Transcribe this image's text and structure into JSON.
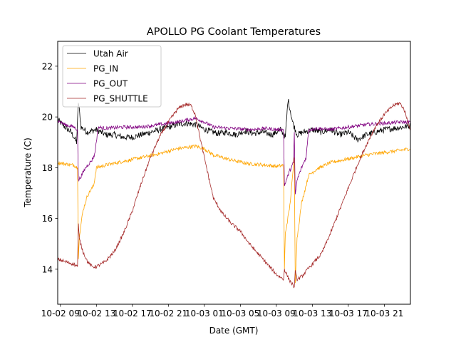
{
  "chart_data": {
    "type": "line",
    "title": "APOLLO PG Coolant Temperatures",
    "xlabel": "Date (GMT)",
    "ylabel": "Temperature (C)",
    "x_unit": "hours since 10-02 00:00 GMT",
    "xlim": [
      8.7,
      47.9
    ],
    "ylim": [
      12.62,
      22.98
    ],
    "xticks": [
      9,
      13,
      17,
      21,
      25,
      29,
      33,
      37,
      41,
      45
    ],
    "xtick_labels": [
      "10-02 09",
      "10-02 13",
      "10-02 17",
      "10-02 21",
      "10-03 01",
      "10-03 05",
      "10-03 09",
      "10-03 13",
      "10-03 17",
      "10-03 21"
    ],
    "yticks": [
      14,
      16,
      18,
      20,
      22
    ],
    "ytick_labels": [
      "14",
      "16",
      "18",
      "20",
      "22"
    ],
    "grid": false,
    "legend": {
      "placement": "top-left"
    },
    "series": [
      {
        "name": "Utah Air",
        "color": "#000000",
        "x": [
          8.7,
          9.5,
          10.2,
          10.8,
          11.0,
          11.3,
          12.0,
          13.0,
          14.0,
          15.0,
          16.0,
          17.0,
          18.0,
          19.0,
          20.0,
          21.0,
          22.0,
          23.0,
          24.0,
          24.8,
          25.5,
          26.5,
          27.5,
          28.5,
          29.5,
          30.5,
          31.5,
          32.5,
          33.5,
          34.0,
          34.3,
          34.8,
          35.3,
          36.0,
          37.0,
          38.0,
          39.0,
          40.0,
          41.0,
          42.0,
          43.0,
          44.0,
          45.0,
          46.0,
          47.0,
          47.9
        ],
        "y": [
          19.9,
          19.6,
          19.4,
          19.0,
          20.6,
          19.6,
          19.4,
          19.5,
          19.3,
          19.3,
          19.2,
          19.2,
          19.3,
          19.4,
          19.5,
          19.6,
          19.7,
          19.75,
          19.7,
          19.55,
          19.45,
          19.35,
          19.4,
          19.3,
          19.45,
          19.35,
          19.4,
          19.3,
          19.5,
          19.2,
          20.7,
          19.8,
          19.3,
          19.4,
          19.5,
          19.4,
          19.5,
          19.3,
          19.4,
          19.1,
          19.3,
          19.4,
          19.5,
          19.55,
          19.6,
          19.65
        ]
      },
      {
        "name": "PG_IN",
        "color": "#ffa500",
        "x": [
          8.7,
          9.5,
          10.5,
          10.9,
          11.0,
          11.1,
          11.5,
          12.0,
          12.7,
          13.0,
          14.0,
          16.0,
          18.0,
          20.0,
          22.0,
          24.0,
          25.0,
          26.0,
          28.0,
          30.0,
          32.0,
          33.0,
          33.8,
          33.9,
          34.0,
          34.5,
          35.0,
          35.1,
          35.3,
          35.8,
          36.3,
          36.6,
          37.5,
          39.0,
          41.0,
          43.0,
          45.0,
          47.0,
          47.9
        ],
        "y": [
          18.2,
          18.15,
          18.1,
          18.0,
          14.4,
          15.3,
          16.3,
          16.9,
          17.3,
          18.0,
          18.1,
          18.25,
          18.4,
          18.55,
          18.75,
          18.85,
          18.75,
          18.5,
          18.3,
          18.15,
          18.1,
          18.05,
          18.1,
          14.0,
          15.4,
          16.5,
          18.4,
          13.5,
          15.2,
          16.6,
          17.3,
          17.7,
          17.95,
          18.2,
          18.35,
          18.5,
          18.6,
          18.7,
          18.75
        ]
      },
      {
        "name": "PG_OUT",
        "color": "#800080",
        "x": [
          8.7,
          9.5,
          10.5,
          10.9,
          11.0,
          11.2,
          11.8,
          12.5,
          12.8,
          13.2,
          14.0,
          16.0,
          18.0,
          20.0,
          22.0,
          24.0,
          25.0,
          26.0,
          28.0,
          30.0,
          32.0,
          33.0,
          33.8,
          33.9,
          34.4,
          34.9,
          35.0,
          35.1,
          35.3,
          35.8,
          36.3,
          36.6,
          37.5,
          39.0,
          41.0,
          43.0,
          45.0,
          47.0,
          47.9
        ],
        "y": [
          19.85,
          19.7,
          19.6,
          19.5,
          17.5,
          17.6,
          18.0,
          18.3,
          18.5,
          19.6,
          19.55,
          19.6,
          19.6,
          19.7,
          19.8,
          19.95,
          19.8,
          19.6,
          19.55,
          19.5,
          19.55,
          19.5,
          19.5,
          17.3,
          17.8,
          18.2,
          19.4,
          16.9,
          17.5,
          18.0,
          18.4,
          19.5,
          19.55,
          19.5,
          19.6,
          19.7,
          19.75,
          19.8,
          19.8
        ]
      },
      {
        "name": "PG_SHUTTLE",
        "color": "#a52a2a",
        "x": [
          8.7,
          9.5,
          10.5,
          10.9,
          11.0,
          11.1,
          11.5,
          12.0,
          12.5,
          13.0,
          14.0,
          15.0,
          16.0,
          17.0,
          18.0,
          19.0,
          20.0,
          21.0,
          22.0,
          22.6,
          23.0,
          23.5,
          24.0,
          24.5,
          25.0,
          25.5,
          26.0,
          27.0,
          28.0,
          29.0,
          30.0,
          31.0,
          32.0,
          33.0,
          33.8,
          33.9,
          34.4,
          35.0,
          35.1,
          35.3,
          35.8,
          36.5,
          37.0,
          38.0,
          39.0,
          40.0,
          41.0,
          42.0,
          43.0,
          44.0,
          45.0,
          46.0,
          46.7,
          47.2,
          47.9
        ],
        "y": [
          14.4,
          14.3,
          14.2,
          14.1,
          15.8,
          15.2,
          14.7,
          14.3,
          14.1,
          14.1,
          14.3,
          14.7,
          15.4,
          16.3,
          17.4,
          18.4,
          19.2,
          19.8,
          20.3,
          20.45,
          20.5,
          20.45,
          20.1,
          19.2,
          18.4,
          17.6,
          16.8,
          16.2,
          15.8,
          15.5,
          15.0,
          14.6,
          14.2,
          13.8,
          13.6,
          14.0,
          13.6,
          13.3,
          13.9,
          13.6,
          13.7,
          14.0,
          14.2,
          14.6,
          15.4,
          16.3,
          17.2,
          18.1,
          18.9,
          19.6,
          20.1,
          20.45,
          20.55,
          20.3,
          19.5
        ]
      }
    ]
  }
}
